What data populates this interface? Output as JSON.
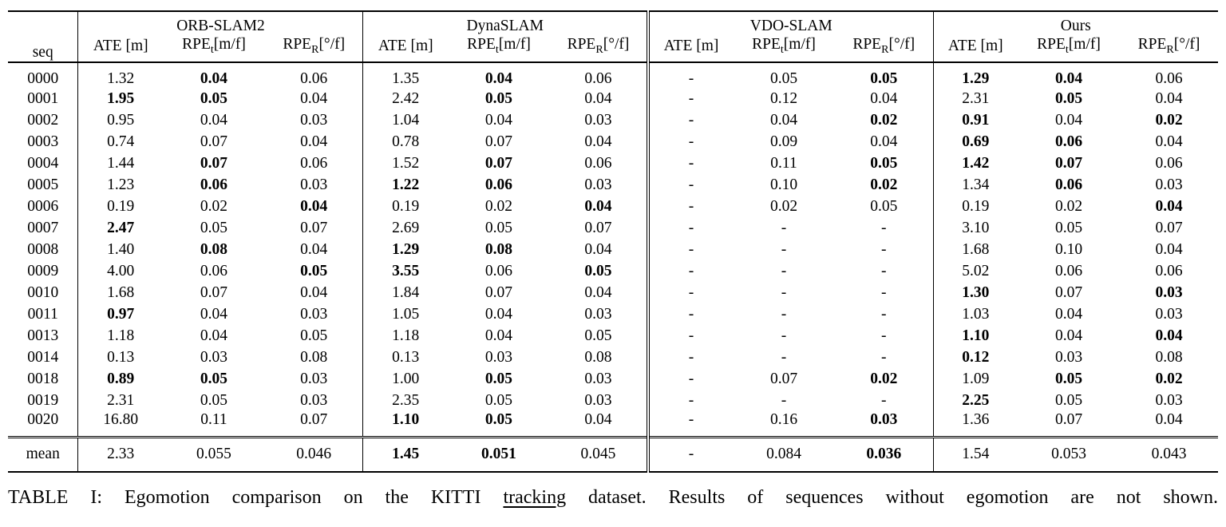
{
  "table": {
    "seq_header": "seq",
    "groups": [
      {
        "name": "ORB-SLAM2"
      },
      {
        "name": "DynaSLAM"
      },
      {
        "name": "VDO-SLAM"
      },
      {
        "name": "Ours"
      }
    ],
    "subheaders": {
      "ate": "ATE [m]",
      "rpe_main": "RPE",
      "rpe_t_sub": "t",
      "rpe_t_unit": "[m/f]",
      "rpe_r_sub": "R",
      "rpe_r_unit": "[°/f]"
    },
    "rows": [
      {
        "seq": "0000",
        "cells": [
          [
            "1.32",
            0
          ],
          [
            "0.04",
            1
          ],
          [
            "0.06",
            0
          ],
          [
            "1.35",
            0
          ],
          [
            "0.04",
            1
          ],
          [
            "0.06",
            0
          ],
          [
            "-",
            0
          ],
          [
            "0.05",
            0
          ],
          [
            "0.05",
            1
          ],
          [
            "1.29",
            1
          ],
          [
            "0.04",
            1
          ],
          [
            "0.06",
            0
          ]
        ]
      },
      {
        "seq": "0001",
        "cells": [
          [
            "1.95",
            1
          ],
          [
            "0.05",
            1
          ],
          [
            "0.04",
            0
          ],
          [
            "2.42",
            0
          ],
          [
            "0.05",
            1
          ],
          [
            "0.04",
            0
          ],
          [
            "-",
            0
          ],
          [
            "0.12",
            0
          ],
          [
            "0.04",
            0
          ],
          [
            "2.31",
            0
          ],
          [
            "0.05",
            1
          ],
          [
            "0.04",
            0
          ]
        ]
      },
      {
        "seq": "0002",
        "cells": [
          [
            "0.95",
            0
          ],
          [
            "0.04",
            0
          ],
          [
            "0.03",
            0
          ],
          [
            "1.04",
            0
          ],
          [
            "0.04",
            0
          ],
          [
            "0.03",
            0
          ],
          [
            "-",
            0
          ],
          [
            "0.04",
            0
          ],
          [
            "0.02",
            1
          ],
          [
            "0.91",
            1
          ],
          [
            "0.04",
            0
          ],
          [
            "0.02",
            1
          ]
        ]
      },
      {
        "seq": "0003",
        "cells": [
          [
            "0.74",
            0
          ],
          [
            "0.07",
            0
          ],
          [
            "0.04",
            0
          ],
          [
            "0.78",
            0
          ],
          [
            "0.07",
            0
          ],
          [
            "0.04",
            0
          ],
          [
            "-",
            0
          ],
          [
            "0.09",
            0
          ],
          [
            "0.04",
            0
          ],
          [
            "0.69",
            1
          ],
          [
            "0.06",
            1
          ],
          [
            "0.04",
            0
          ]
        ]
      },
      {
        "seq": "0004",
        "cells": [
          [
            "1.44",
            0
          ],
          [
            "0.07",
            1
          ],
          [
            "0.06",
            0
          ],
          [
            "1.52",
            0
          ],
          [
            "0.07",
            1
          ],
          [
            "0.06",
            0
          ],
          [
            "-",
            0
          ],
          [
            "0.11",
            0
          ],
          [
            "0.05",
            1
          ],
          [
            "1.42",
            1
          ],
          [
            "0.07",
            1
          ],
          [
            "0.06",
            0
          ]
        ]
      },
      {
        "seq": "0005",
        "cells": [
          [
            "1.23",
            0
          ],
          [
            "0.06",
            1
          ],
          [
            "0.03",
            0
          ],
          [
            "1.22",
            1
          ],
          [
            "0.06",
            1
          ],
          [
            "0.03",
            0
          ],
          [
            "-",
            0
          ],
          [
            "0.10",
            0
          ],
          [
            "0.02",
            1
          ],
          [
            "1.34",
            0
          ],
          [
            "0.06",
            1
          ],
          [
            "0.03",
            0
          ]
        ]
      },
      {
        "seq": "0006",
        "cells": [
          [
            "0.19",
            0
          ],
          [
            "0.02",
            0
          ],
          [
            "0.04",
            1
          ],
          [
            "0.19",
            0
          ],
          [
            "0.02",
            0
          ],
          [
            "0.04",
            1
          ],
          [
            "-",
            0
          ],
          [
            "0.02",
            0
          ],
          [
            "0.05",
            0
          ],
          [
            "0.19",
            0
          ],
          [
            "0.02",
            0
          ],
          [
            "0.04",
            1
          ]
        ]
      },
      {
        "seq": "0007",
        "cells": [
          [
            "2.47",
            1
          ],
          [
            "0.05",
            0
          ],
          [
            "0.07",
            0
          ],
          [
            "2.69",
            0
          ],
          [
            "0.05",
            0
          ],
          [
            "0.07",
            0
          ],
          [
            "-",
            0
          ],
          [
            "-",
            0
          ],
          [
            "-",
            0
          ],
          [
            "3.10",
            0
          ],
          [
            "0.05",
            0
          ],
          [
            "0.07",
            0
          ]
        ]
      },
      {
        "seq": "0008",
        "cells": [
          [
            "1.40",
            0
          ],
          [
            "0.08",
            1
          ],
          [
            "0.04",
            0
          ],
          [
            "1.29",
            1
          ],
          [
            "0.08",
            1
          ],
          [
            "0.04",
            0
          ],
          [
            "-",
            0
          ],
          [
            "-",
            0
          ],
          [
            "-",
            0
          ],
          [
            "1.68",
            0
          ],
          [
            "0.10",
            0
          ],
          [
            "0.04",
            0
          ]
        ]
      },
      {
        "seq": "0009",
        "cells": [
          [
            "4.00",
            0
          ],
          [
            "0.06",
            0
          ],
          [
            "0.05",
            1
          ],
          [
            "3.55",
            1
          ],
          [
            "0.06",
            0
          ],
          [
            "0.05",
            1
          ],
          [
            "-",
            0
          ],
          [
            "-",
            0
          ],
          [
            "-",
            0
          ],
          [
            "5.02",
            0
          ],
          [
            "0.06",
            0
          ],
          [
            "0.06",
            0
          ]
        ]
      },
      {
        "seq": "0010",
        "cells": [
          [
            "1.68",
            0
          ],
          [
            "0.07",
            0
          ],
          [
            "0.04",
            0
          ],
          [
            "1.84",
            0
          ],
          [
            "0.07",
            0
          ],
          [
            "0.04",
            0
          ],
          [
            "-",
            0
          ],
          [
            "-",
            0
          ],
          [
            "-",
            0
          ],
          [
            "1.30",
            1
          ],
          [
            "0.07",
            0
          ],
          [
            "0.03",
            1
          ]
        ]
      },
      {
        "seq": "0011",
        "cells": [
          [
            "0.97",
            1
          ],
          [
            "0.04",
            0
          ],
          [
            "0.03",
            0
          ],
          [
            "1.05",
            0
          ],
          [
            "0.04",
            0
          ],
          [
            "0.03",
            0
          ],
          [
            "-",
            0
          ],
          [
            "-",
            0
          ],
          [
            "-",
            0
          ],
          [
            "1.03",
            0
          ],
          [
            "0.04",
            0
          ],
          [
            "0.03",
            0
          ]
        ]
      },
      {
        "seq": "0013",
        "cells": [
          [
            "1.18",
            0
          ],
          [
            "0.04",
            0
          ],
          [
            "0.05",
            0
          ],
          [
            "1.18",
            0
          ],
          [
            "0.04",
            0
          ],
          [
            "0.05",
            0
          ],
          [
            "-",
            0
          ],
          [
            "-",
            0
          ],
          [
            "-",
            0
          ],
          [
            "1.10",
            1
          ],
          [
            "0.04",
            0
          ],
          [
            "0.04",
            1
          ]
        ]
      },
      {
        "seq": "0014",
        "cells": [
          [
            "0.13",
            0
          ],
          [
            "0.03",
            0
          ],
          [
            "0.08",
            0
          ],
          [
            "0.13",
            0
          ],
          [
            "0.03",
            0
          ],
          [
            "0.08",
            0
          ],
          [
            "-",
            0
          ],
          [
            "-",
            0
          ],
          [
            "-",
            0
          ],
          [
            "0.12",
            1
          ],
          [
            "0.03",
            0
          ],
          [
            "0.08",
            0
          ]
        ]
      },
      {
        "seq": "0018",
        "cells": [
          [
            "0.89",
            1
          ],
          [
            "0.05",
            1
          ],
          [
            "0.03",
            0
          ],
          [
            "1.00",
            0
          ],
          [
            "0.05",
            1
          ],
          [
            "0.03",
            0
          ],
          [
            "-",
            0
          ],
          [
            "0.07",
            0
          ],
          [
            "0.02",
            1
          ],
          [
            "1.09",
            0
          ],
          [
            "0.05",
            1
          ],
          [
            "0.02",
            1
          ]
        ]
      },
      {
        "seq": "0019",
        "cells": [
          [
            "2.31",
            0
          ],
          [
            "0.05",
            0
          ],
          [
            "0.03",
            0
          ],
          [
            "2.35",
            0
          ],
          [
            "0.05",
            0
          ],
          [
            "0.03",
            0
          ],
          [
            "-",
            0
          ],
          [
            "-",
            0
          ],
          [
            "-",
            0
          ],
          [
            "2.25",
            1
          ],
          [
            "0.05",
            0
          ],
          [
            "0.03",
            0
          ]
        ]
      },
      {
        "seq": "0020",
        "cells": [
          [
            "16.80",
            0
          ],
          [
            "0.11",
            0
          ],
          [
            "0.07",
            0
          ],
          [
            "1.10",
            1
          ],
          [
            "0.05",
            1
          ],
          [
            "0.04",
            0
          ],
          [
            "-",
            0
          ],
          [
            "0.16",
            0
          ],
          [
            "0.03",
            1
          ],
          [
            "1.36",
            0
          ],
          [
            "0.07",
            0
          ],
          [
            "0.04",
            0
          ]
        ]
      }
    ],
    "mean_row": {
      "seq": "mean",
      "cells": [
        [
          "2.33",
          0
        ],
        [
          "0.055",
          0
        ],
        [
          "0.046",
          0
        ],
        [
          "1.45",
          1
        ],
        [
          "0.051",
          1
        ],
        [
          "0.045",
          0
        ],
        [
          "-",
          0
        ],
        [
          "0.084",
          0
        ],
        [
          "0.036",
          1
        ],
        [
          "1.54",
          0
        ],
        [
          "0.053",
          0
        ],
        [
          "0.043",
          0
        ]
      ]
    }
  },
  "caption": {
    "label": "TABLE I:",
    "text_before": " Egomotion comparison on the KITTI ",
    "underlined": "tracking",
    "text_after": " dataset. Results of sequences without egomotion are not shown."
  }
}
